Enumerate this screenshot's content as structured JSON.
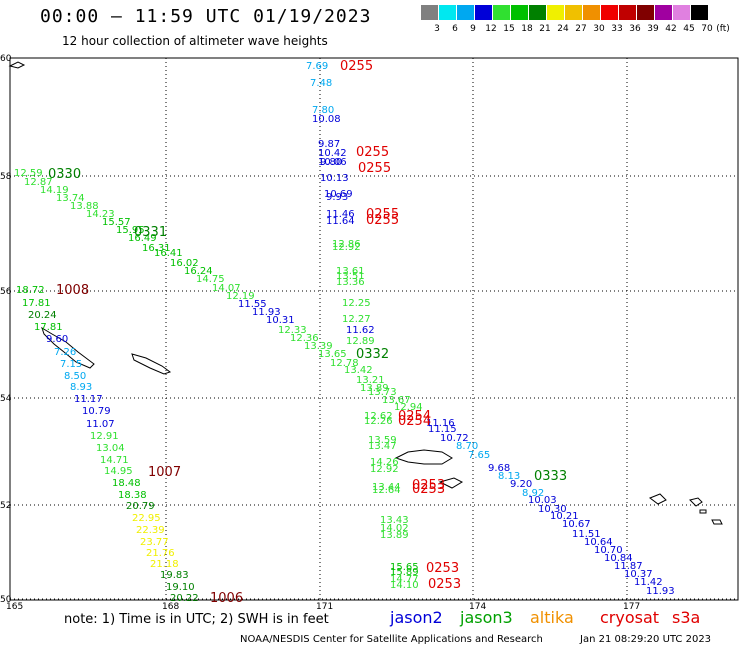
{
  "title": "00:00 – 11:59 UTC 01/19/2023",
  "subtitle": "12 hour collection of altimeter wave heights",
  "colorbar": {
    "unit_label": "(ft)",
    "bins": [
      {
        "label": "3",
        "color": "#808080"
      },
      {
        "label": "6",
        "color": "#00e8f0"
      },
      {
        "label": "9",
        "color": "#00a8f0"
      },
      {
        "label": "12",
        "color": "#0000d8"
      },
      {
        "label": "15",
        "color": "#30e030"
      },
      {
        "label": "18",
        "color": "#00c000"
      },
      {
        "label": "21",
        "color": "#008000"
      },
      {
        "label": "24",
        "color": "#f0f000"
      },
      {
        "label": "27",
        "color": "#f0c000"
      },
      {
        "label": "30",
        "color": "#f09000"
      },
      {
        "label": "33",
        "color": "#f00000"
      },
      {
        "label": "36",
        "color": "#c00000"
      },
      {
        "label": "39",
        "color": "#800000"
      },
      {
        "label": "42",
        "color": "#a000a0"
      },
      {
        "label": "45",
        "color": "#e080e0"
      },
      {
        "label": "70",
        "color": "#000000"
      }
    ]
  },
  "axes": {
    "lat_labels": [
      "60",
      "58",
      "56",
      "54",
      "52",
      "50"
    ],
    "lon_labels": [
      "165",
      "168",
      "171",
      "174",
      "177"
    ]
  },
  "tracks": [
    {
      "time": "0255",
      "time_color": "#e00000",
      "labels": [
        {
          "v": "7.69",
          "c": "#00a8f0"
        },
        {
          "v": "7.48",
          "c": "#00a8f0"
        },
        {
          "v": "7.80",
          "c": "#00a8f0"
        },
        {
          "v": "10.08",
          "c": "#0000d8"
        },
        {
          "v": "9.87",
          "c": "#0000d8"
        },
        {
          "v": "10.42",
          "c": "#0000d8"
        },
        {
          "v": "10.06",
          "c": "#0000d8"
        },
        {
          "v": "9.80",
          "c": "#0000d8"
        },
        {
          "v": "10.13",
          "c": "#0000d8"
        },
        {
          "v": "10.69",
          "c": "#0000d8"
        },
        {
          "v": "9.93",
          "c": "#0000d8"
        },
        {
          "v": "11.46",
          "c": "#0000d8"
        },
        {
          "v": "11.64",
          "c": "#0000d8"
        },
        {
          "v": "12.86",
          "c": "#30e030"
        },
        {
          "v": "12.92",
          "c": "#30e030"
        },
        {
          "v": "13.61",
          "c": "#30e030"
        },
        {
          "v": "13.51",
          "c": "#30e030"
        },
        {
          "v": "13.36",
          "c": "#30e030"
        },
        {
          "v": "12.25",
          "c": "#30e030"
        },
        {
          "v": "12.27",
          "c": "#30e030"
        },
        {
          "v": "11.62",
          "c": "#0000d8"
        },
        {
          "v": "12.89",
          "c": "#30e030"
        }
      ]
    },
    {
      "time": "0330",
      "time_color": "#008000",
      "labels": [
        {
          "v": "12.59",
          "c": "#30e030"
        },
        {
          "v": "12.87",
          "c": "#30e030"
        },
        {
          "v": "14.19",
          "c": "#30e030"
        },
        {
          "v": "13.74",
          "c": "#30e030"
        },
        {
          "v": "13.88",
          "c": "#30e030"
        },
        {
          "v": "14.23",
          "c": "#30e030"
        },
        {
          "v": "15.57",
          "c": "#00c000"
        },
        {
          "v": "15.95",
          "c": "#00c000"
        },
        {
          "v": "16.49",
          "c": "#00c000"
        },
        {
          "v": "16.31",
          "c": "#00c000"
        },
        {
          "v": "16.41",
          "c": "#00c000"
        },
        {
          "v": "16.02",
          "c": "#00c000"
        },
        {
          "v": "16.24",
          "c": "#00c000"
        },
        {
          "v": "14.75",
          "c": "#30e030"
        },
        {
          "v": "14.07",
          "c": "#30e030"
        },
        {
          "v": "12.19",
          "c": "#30e030"
        },
        {
          "v": "11.55",
          "c": "#0000d8"
        },
        {
          "v": "11.93",
          "c": "#0000d8"
        },
        {
          "v": "10.31",
          "c": "#0000d8"
        },
        {
          "v": "12.33",
          "c": "#30e030"
        },
        {
          "v": "12.36",
          "c": "#30e030"
        },
        {
          "v": "13.39",
          "c": "#30e030"
        },
        {
          "v": "13.65",
          "c": "#30e030"
        },
        {
          "v": "12.78",
          "c": "#30e030"
        },
        {
          "v": "13.42",
          "c": "#30e030"
        },
        {
          "v": "13.21",
          "c": "#30e030"
        },
        {
          "v": "13.89",
          "c": "#30e030"
        },
        {
          "v": "13.73",
          "c": "#30e030"
        },
        {
          "v": "13.67",
          "c": "#30e030"
        },
        {
          "v": "12.94",
          "c": "#30e030"
        }
      ]
    },
    {
      "time": "0331",
      "time_color": "#008000"
    },
    {
      "time": "1008",
      "time_color": "#800000",
      "labels": [
        {
          "v": "18.72",
          "c": "#00c000"
        },
        {
          "v": "17.81",
          "c": "#00c000"
        },
        {
          "v": "20.24",
          "c": "#008000"
        },
        {
          "v": "17.81",
          "c": "#00c000"
        },
        {
          "v": "9.60",
          "c": "#0000d8"
        },
        {
          "v": "7.26",
          "c": "#00a8f0"
        },
        {
          "v": "7.15",
          "c": "#00a8f0"
        },
        {
          "v": "8.50",
          "c": "#00a8f0"
        },
        {
          "v": "8.93",
          "c": "#00a8f0"
        },
        {
          "v": "11.17",
          "c": "#0000d8"
        },
        {
          "v": "10.79",
          "c": "#0000d8"
        },
        {
          "v": "11.07",
          "c": "#0000d8"
        },
        {
          "v": "12.91",
          "c": "#30e030"
        },
        {
          "v": "13.04",
          "c": "#30e030"
        },
        {
          "v": "14.71",
          "c": "#30e030"
        },
        {
          "v": "14.95",
          "c": "#30e030"
        },
        {
          "v": "18.48",
          "c": "#00c000"
        },
        {
          "v": "18.38",
          "c": "#00c000"
        },
        {
          "v": "20.79",
          "c": "#008000"
        },
        {
          "v": "22.95",
          "c": "#f0f000"
        },
        {
          "v": "22.39",
          "c": "#f0f000"
        },
        {
          "v": "23.77",
          "c": "#f0f000"
        },
        {
          "v": "21.76",
          "c": "#f0f000"
        },
        {
          "v": "21.18",
          "c": "#f0f000"
        },
        {
          "v": "19.83",
          "c": "#008000"
        },
        {
          "v": "19.10",
          "c": "#008000"
        },
        {
          "v": "20.22",
          "c": "#008000"
        }
      ]
    },
    {
      "time": "1007",
      "time_color": "#800000"
    },
    {
      "time": "1006",
      "time_color": "#800000"
    },
    {
      "time": "0332",
      "time_color": "#008000"
    },
    {
      "time": "0254",
      "time_color": "#e00000",
      "labels": [
        {
          "v": "12.62",
          "c": "#30e030"
        },
        {
          "v": "12.26",
          "c": "#30e030"
        },
        {
          "v": "11.16",
          "c": "#0000d8"
        },
        {
          "v": "11.15",
          "c": "#0000d8"
        },
        {
          "v": "10.72",
          "c": "#0000d8"
        },
        {
          "v": "8.70",
          "c": "#00a8f0"
        },
        {
          "v": "7.65",
          "c": "#00a8f0"
        },
        {
          "v": "13.59",
          "c": "#30e030"
        },
        {
          "v": "13.47",
          "c": "#30e030"
        },
        {
          "v": "14.26",
          "c": "#30e030"
        },
        {
          "v": "12.92",
          "c": "#30e030"
        },
        {
          "v": "13.44",
          "c": "#30e030"
        },
        {
          "v": "12.64",
          "c": "#30e030"
        },
        {
          "v": "13.43",
          "c": "#30e030"
        },
        {
          "v": "14.02",
          "c": "#30e030"
        },
        {
          "v": "13.89",
          "c": "#30e030"
        },
        {
          "v": "15.65",
          "c": "#00c000"
        },
        {
          "v": "15.89",
          "c": "#00c000"
        },
        {
          "v": "14.77",
          "c": "#30e030"
        },
        {
          "v": "14.10",
          "c": "#30e030"
        }
      ]
    },
    {
      "time": "0253",
      "time_color": "#e00000"
    },
    {
      "time": "0333",
      "time_color": "#008000",
      "labels": [
        {
          "v": "9.68",
          "c": "#0000d8"
        },
        {
          "v": "8.13",
          "c": "#00a8f0"
        },
        {
          "v": "9.20",
          "c": "#0000d8"
        },
        {
          "v": "8.92",
          "c": "#00a8f0"
        },
        {
          "v": "10.03",
          "c": "#0000d8"
        },
        {
          "v": "10.30",
          "c": "#0000d8"
        },
        {
          "v": "10.21",
          "c": "#0000d8"
        },
        {
          "v": "10.67",
          "c": "#0000d8"
        },
        {
          "v": "11.51",
          "c": "#0000d8"
        },
        {
          "v": "10.64",
          "c": "#0000d8"
        },
        {
          "v": "10.70",
          "c": "#0000d8"
        },
        {
          "v": "10.84",
          "c": "#0000d8"
        },
        {
          "v": "11.87",
          "c": "#0000d8"
        },
        {
          "v": "10.37",
          "c": "#0000d8"
        },
        {
          "v": "11.42",
          "c": "#0000d8"
        },
        {
          "v": "11.93",
          "c": "#0000d8"
        }
      ]
    }
  ],
  "footer": {
    "note": "note: 1) Time is in UTC; 2) SWH is in feet",
    "satellites": [
      {
        "name": "jason2",
        "color": "#0000d8"
      },
      {
        "name": "jason3",
        "color": "#00a000"
      },
      {
        "name": "altika",
        "color": "#f09000"
      },
      {
        "name": "cryosat",
        "color": "#e00000"
      },
      {
        "name": "s3a",
        "color": "#e00000"
      }
    ],
    "credit": "NOAA/NESDIS Center for Satellite Applications and Research",
    "generated": "Jan 21 08:29:20 UTC 2023"
  }
}
